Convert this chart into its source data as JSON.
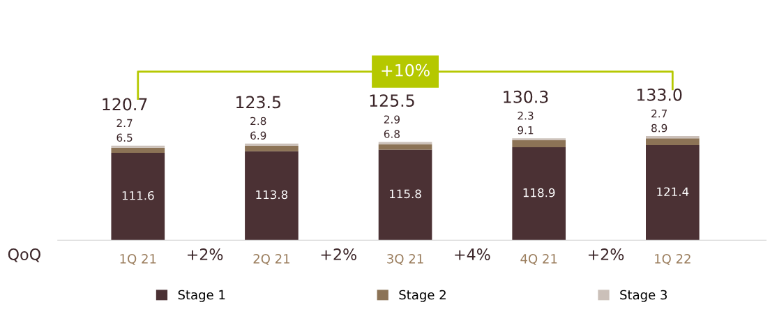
{
  "chart_data": {
    "type": "bar",
    "stacked": true,
    "data_labels": true,
    "legend": "bottom",
    "grid": false,
    "categories": [
      "1Q 21",
      "2Q 21",
      "3Q 21",
      "4Q 21",
      "1Q 22"
    ],
    "series": [
      {
        "name": "Stage 1",
        "color": "#4b3134",
        "values": [
          111.6,
          113.8,
          115.8,
          118.9,
          121.4
        ]
      },
      {
        "name": "Stage 2",
        "color": "#8c7356",
        "values": [
          6.5,
          6.9,
          6.8,
          9.1,
          8.9
        ]
      },
      {
        "name": "Stage 3",
        "color": "#cbc0b9",
        "values": [
          2.7,
          2.8,
          2.9,
          2.3,
          2.7
        ]
      }
    ],
    "totals": [
      "120.7",
      "123.5",
      "125.5",
      "130.3",
      "133.0"
    ],
    "annotations": [
      "QoQ",
      "+2%",
      "+2%",
      "+4%",
      "+2%",
      "+10%"
    ]
  }
}
